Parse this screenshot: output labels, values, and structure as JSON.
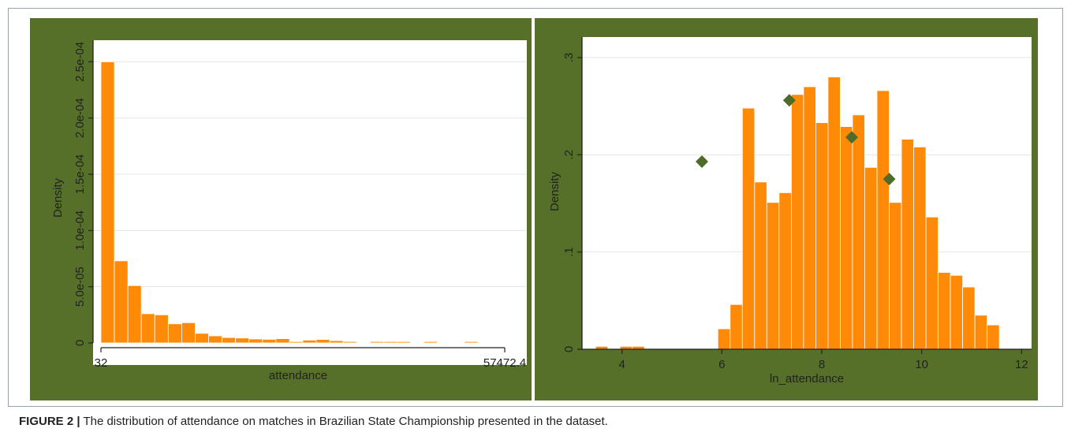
{
  "caption": {
    "label": "FIGURE 2 |",
    "text": " The distribution of attendance on matches in Brazilian State Championship presented in the dataset."
  },
  "colors": {
    "panel_bg": "#567029",
    "bar_fill": "#ff8a07",
    "bar_stroke": "#ffffff",
    "marker": "#4e6b2a",
    "grid": "#e6e6e6",
    "axis": "#222222"
  },
  "chart_data": [
    {
      "type": "bar",
      "title": "",
      "xlabel": "attendance",
      "ylabel": "Density",
      "x_tick_labels": [
        "32",
        "57472.4"
      ],
      "y_tick_labels": [
        "0",
        "5.0e-05",
        "1.0e-04",
        "1.5e-04",
        "2.0e-04",
        "2.5e-04"
      ],
      "y_ticks": [
        0,
        5e-05,
        0.0001,
        0.00015,
        0.0002,
        0.00025
      ],
      "xlim": [
        32,
        57472.4
      ],
      "ylim": [
        0,
        0.000265
      ],
      "grid": true,
      "bin_width": 1914.68,
      "values": [
        0.00025,
        7.3e-05,
        5.1e-05,
        2.6e-05,
        2.5e-05,
        1.7e-05,
        1.8e-05,
        8.5e-06,
        6.3e-06,
        4.8e-06,
        4.4e-06,
        3.5e-06,
        3.2e-06,
        3.8e-06,
        1.2e-06,
        2.5e-06,
        3.1e-06,
        2e-06,
        1.2e-06,
        5e-07,
        1.2e-06,
        1.2e-06,
        1.2e-06,
        5e-07,
        1.2e-06,
        5e-07,
        5e-07,
        1.2e-06,
        5e-07,
        3e-07
      ]
    },
    {
      "type": "bar",
      "title": "",
      "xlabel": "ln_attendance",
      "ylabel": "Density",
      "x_tick_labels": [
        "4",
        "6",
        "8",
        "10",
        "12"
      ],
      "x_ticks": [
        4,
        6,
        8,
        10,
        12
      ],
      "y_tick_labels": [
        "0",
        ".1",
        ".2",
        ".3"
      ],
      "y_ticks": [
        0,
        0.1,
        0.2,
        0.3
      ],
      "xlim": [
        3.2,
        12.2
      ],
      "ylim": [
        0,
        0.3
      ],
      "grid": true,
      "bin_width": 0.245,
      "bins_start": 3.47,
      "values": [
        0.003,
        0,
        0.003,
        0.003,
        0,
        0,
        0,
        0,
        0,
        0,
        0.021,
        0.046,
        0.248,
        0.172,
        0.151,
        0.161,
        0.262,
        0.27,
        0.233,
        0.28,
        0.229,
        0.241,
        0.187,
        0.266,
        0.151,
        0.216,
        0.208,
        0.136,
        0.079,
        0.076,
        0.064,
        0.035,
        0.025
      ],
      "markers": [
        {
          "x": 5.6,
          "y": 0.193
        },
        {
          "x": 7.35,
          "y": 0.256
        },
        {
          "x": 8.6,
          "y": 0.218
        },
        {
          "x": 9.35,
          "y": 0.175
        }
      ]
    }
  ]
}
